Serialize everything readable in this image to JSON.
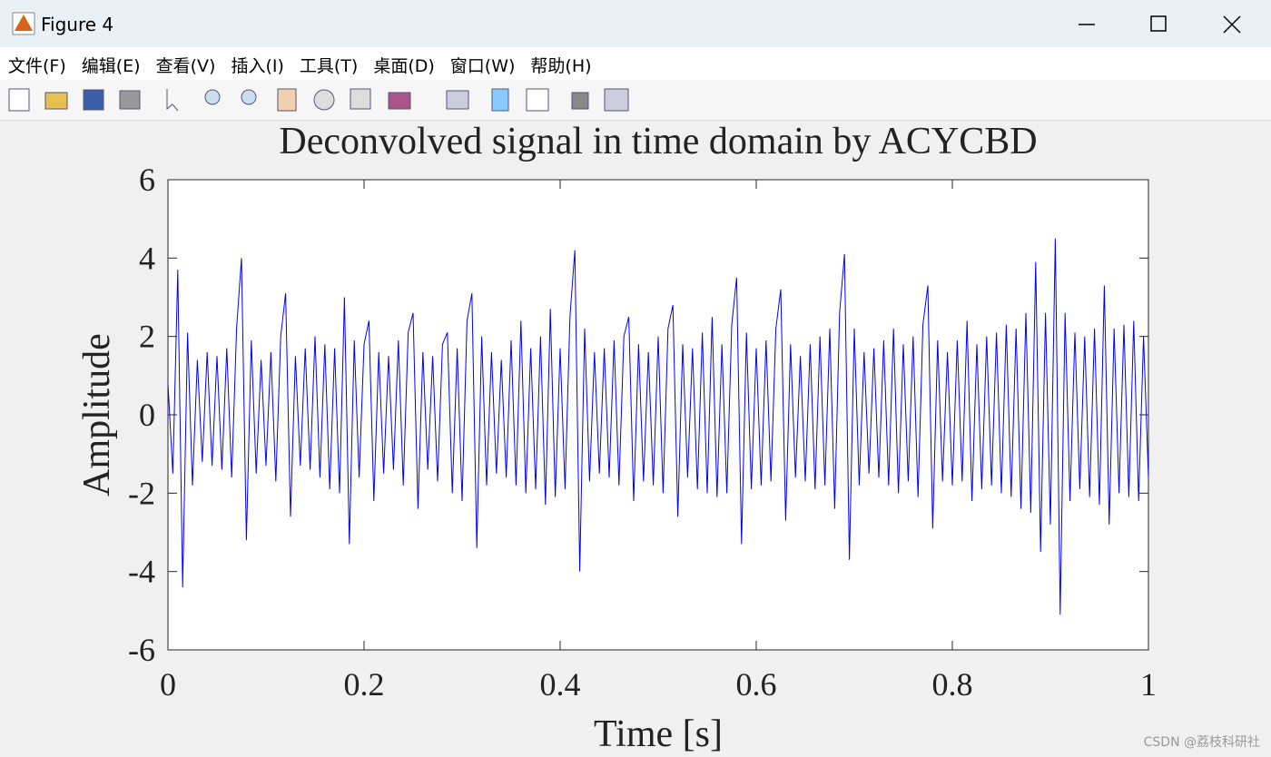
{
  "window": {
    "title": "Figure 4",
    "menu": [
      "文件(F)",
      "编辑(E)",
      "查看(V)",
      "插入(I)",
      "工具(T)",
      "桌面(D)",
      "窗口(W)",
      "帮助(H)"
    ],
    "watermark": "CSDN @荔枝科研社"
  },
  "chart_data": {
    "type": "line",
    "title": "Deconvolved signal in time domain by ACYCBD",
    "x_label": "Time [s]",
    "y_label": "Amplitude",
    "x": [
      0,
      0.005,
      0.01,
      0.015,
      0.02,
      0.025,
      0.03,
      0.035,
      0.04,
      0.045,
      0.05,
      0.055,
      0.06,
      0.065,
      0.07,
      0.075,
      0.08,
      0.085,
      0.09,
      0.095,
      0.1,
      0.105,
      0.11,
      0.115,
      0.12,
      0.125,
      0.13,
      0.135,
      0.14,
      0.145,
      0.15,
      0.155,
      0.16,
      0.165,
      0.17,
      0.175,
      0.18,
      0.185,
      0.19,
      0.195,
      0.2,
      0.205,
      0.21,
      0.215,
      0.22,
      0.225,
      0.23,
      0.235,
      0.24,
      0.245,
      0.25,
      0.255,
      0.26,
      0.265,
      0.27,
      0.275,
      0.28,
      0.285,
      0.29,
      0.295,
      0.3,
      0.305,
      0.31,
      0.315,
      0.32,
      0.325,
      0.33,
      0.335,
      0.34,
      0.345,
      0.35,
      0.355,
      0.36,
      0.365,
      0.37,
      0.375,
      0.38,
      0.385,
      0.39,
      0.395,
      0.4,
      0.405,
      0.41,
      0.415,
      0.42,
      0.425,
      0.43,
      0.435,
      0.44,
      0.445,
      0.45,
      0.455,
      0.46,
      0.465,
      0.47,
      0.475,
      0.48,
      0.485,
      0.49,
      0.495,
      0.5,
      0.505,
      0.51,
      0.515,
      0.52,
      0.525,
      0.53,
      0.535,
      0.54,
      0.545,
      0.55,
      0.555,
      0.56,
      0.565,
      0.57,
      0.575,
      0.58,
      0.585,
      0.59,
      0.595,
      0.6,
      0.605,
      0.61,
      0.615,
      0.62,
      0.625,
      0.63,
      0.635,
      0.64,
      0.645,
      0.65,
      0.655,
      0.66,
      0.665,
      0.67,
      0.675,
      0.68,
      0.685,
      0.69,
      0.695,
      0.7,
      0.705,
      0.71,
      0.715,
      0.72,
      0.725,
      0.73,
      0.735,
      0.74,
      0.745,
      0.75,
      0.755,
      0.76,
      0.765,
      0.77,
      0.775,
      0.78,
      0.785,
      0.79,
      0.795,
      0.8,
      0.805,
      0.81,
      0.815,
      0.82,
      0.825,
      0.83,
      0.835,
      0.84,
      0.845,
      0.85,
      0.855,
      0.86,
      0.865,
      0.87,
      0.875,
      0.88,
      0.885,
      0.89,
      0.895,
      0.9,
      0.905,
      0.91,
      0.915,
      0.92,
      0.925,
      0.93,
      0.935,
      0.94,
      0.945,
      0.95,
      0.955,
      0.96,
      0.965,
      0.97,
      0.975,
      0.98,
      0.985,
      0.99,
      0.995,
      1
    ],
    "values": [
      0.8,
      -1.5,
      3.7,
      -4.4,
      2.1,
      -1.8,
      1.4,
      -1.2,
      1.6,
      -1.3,
      1.5,
      -1.4,
      1.7,
      -1.6,
      2.2,
      4.0,
      -3.2,
      1.9,
      -1.5,
      1.4,
      -1.3,
      1.6,
      -1.7,
      2.0,
      3.1,
      -2.6,
      1.5,
      -1.3,
      1.7,
      -1.4,
      2.0,
      -1.6,
      1.8,
      -1.9,
      1.7,
      -2.0,
      3.0,
      -3.3,
      1.9,
      -1.6,
      1.8,
      2.4,
      -2.2,
      1.6,
      -1.5,
      1.5,
      -1.4,
      1.9,
      -1.8,
      2.1,
      2.6,
      -2.4,
      1.6,
      -1.4,
      1.5,
      -1.7,
      1.8,
      2.1,
      -2.0,
      1.7,
      -2.2,
      2.4,
      3.1,
      -3.4,
      2.0,
      -1.8,
      1.6,
      -1.5,
      1.4,
      -1.6,
      1.9,
      -1.8,
      2.4,
      -2.0,
      1.7,
      -1.9,
      2.0,
      -2.3,
      2.7,
      -2.1,
      1.7,
      -1.9,
      2.5,
      4.2,
      -4.0,
      2.2,
      -1.7,
      1.6,
      -1.5,
      1.7,
      -1.6,
      1.9,
      -1.8,
      2.0,
      2.5,
      -2.2,
      1.8,
      -1.7,
      1.6,
      -1.8,
      2.0,
      -2.0,
      2.2,
      2.8,
      -2.6,
      1.8,
      -1.6,
      1.7,
      -1.9,
      2.1,
      -2.0,
      2.5,
      -2.1,
      1.8,
      -2.0,
      2.3,
      3.5,
      -3.3,
      2.1,
      -1.9,
      1.7,
      -1.8,
      1.9,
      -1.7,
      2.2,
      3.2,
      -2.7,
      1.8,
      -1.6,
      1.5,
      -1.7,
      1.8,
      -1.9,
      2.0,
      -1.8,
      2.2,
      -2.4,
      2.6,
      4.1,
      -3.7,
      2.2,
      -1.8,
      1.6,
      -1.5,
      1.7,
      -1.6,
      1.9,
      -1.8,
      2.2,
      -2.0,
      1.8,
      -1.7,
      2.0,
      -2.1,
      2.3,
      3.3,
      -2.9,
      1.9,
      -1.7,
      1.6,
      -1.8,
      1.9,
      -1.7,
      2.4,
      -2.2,
      1.8,
      -1.9,
      2.0,
      -1.8,
      2.1,
      -2.0,
      2.3,
      -2.1,
      2.2,
      -2.4,
      2.6,
      -2.5,
      3.9,
      -3.5,
      2.6,
      -2.8,
      4.5,
      -5.1,
      2.6,
      -2.2,
      2.1,
      -1.9,
      2.0,
      -2.1,
      2.2,
      -2.3,
      3.3,
      -2.8,
      2.2,
      -2.0,
      2.3,
      -2.1,
      2.4,
      -2.2,
      2.0,
      -1.6
    ],
    "color": "#0000ff",
    "xlim": [
      0,
      1
    ],
    "ylim": [
      -6,
      6
    ],
    "xticks": [
      0,
      0.2,
      0.4,
      0.6,
      0.8,
      1
    ],
    "yticks": [
      -6,
      -4,
      -2,
      0,
      2,
      4,
      6
    ],
    "grid": false
  }
}
